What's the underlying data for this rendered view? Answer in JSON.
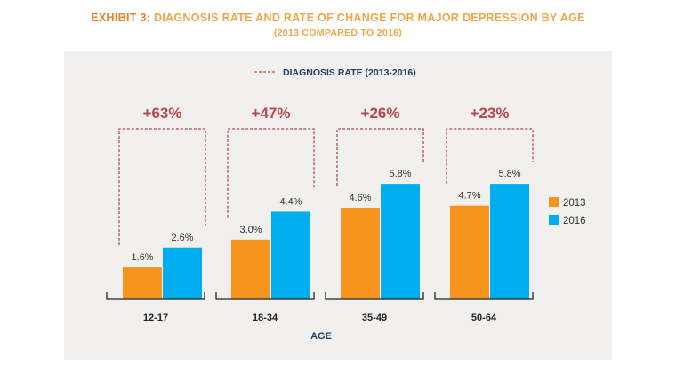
{
  "header": {
    "title_prefix": "EXHIBIT 3:",
    "title_rest": "DIAGNOSIS RATE AND RATE OF CHANGE FOR MAJOR DEPRESSION BY AGE",
    "subtitle": "(2013 COMPARED TO 2016)"
  },
  "colors": {
    "orange": "#f7941d",
    "blue": "#00aeef",
    "dashed_red": "#b8474b",
    "navy": "#1f3a66",
    "panel_bg": "#f1f0ee"
  },
  "chart_data": {
    "type": "bar",
    "categories": [
      "12-17",
      "18-34",
      "35-49",
      "50-64"
    ],
    "series": [
      {
        "name": "2013",
        "values": [
          1.6,
          3.0,
          4.6,
          4.7
        ],
        "labels": [
          "1.6%",
          "3.0%",
          "4.6%",
          "4.7%"
        ],
        "color": "#f7941d"
      },
      {
        "name": "2016",
        "values": [
          2.6,
          4.4,
          5.8,
          5.8
        ],
        "labels": [
          "2.6%",
          "4.4%",
          "5.8%",
          "5.8%"
        ],
        "color": "#00aeef"
      }
    ],
    "change_labels": [
      "+63%",
      "+47%",
      "+26%",
      "+23%"
    ],
    "top_legend": "DIAGNOSIS RATE (2013-2016)",
    "xlabel": "AGE",
    "ylabel": "",
    "ylim": [
      0,
      6.5
    ],
    "grid": false,
    "legend_placement": "right"
  }
}
